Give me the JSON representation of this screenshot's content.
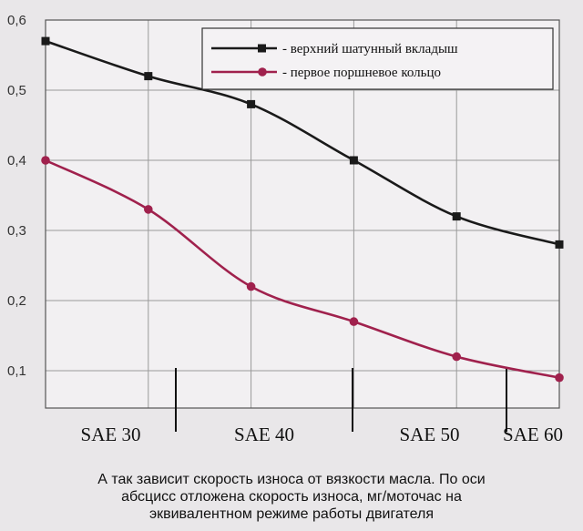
{
  "chart_data": {
    "type": "line",
    "x": [
      0,
      1,
      2,
      3,
      4,
      5
    ],
    "series": [
      {
        "name": "- верхний шатунный вкладыш",
        "values": [
          0.57,
          0.52,
          0.48,
          0.4,
          0.32,
          0.28
        ],
        "color": "#1a1a1a",
        "marker": "square"
      },
      {
        "name": "- первое поршневое кольцо",
        "values": [
          0.4,
          0.33,
          0.22,
          0.17,
          0.12,
          0.09
        ],
        "color": "#a0214d",
        "marker": "circle"
      }
    ],
    "y_ticks": [
      "0,1",
      "0,2",
      "0,3",
      "0,4",
      "0,5",
      "0,6"
    ],
    "ylim": [
      0.0,
      0.6
    ],
    "categories": [
      "SAE 30",
      "SAE 40",
      "SAE 50",
      "SAE 60"
    ],
    "grid": true,
    "legend": "top-right"
  },
  "caption": [
    "А так зависит скорость износа от вязкости масла. По оси",
    "абсцисс отложена скорость износа, мг/моточас на",
    "эквивалентном режиме работы двигателя"
  ]
}
